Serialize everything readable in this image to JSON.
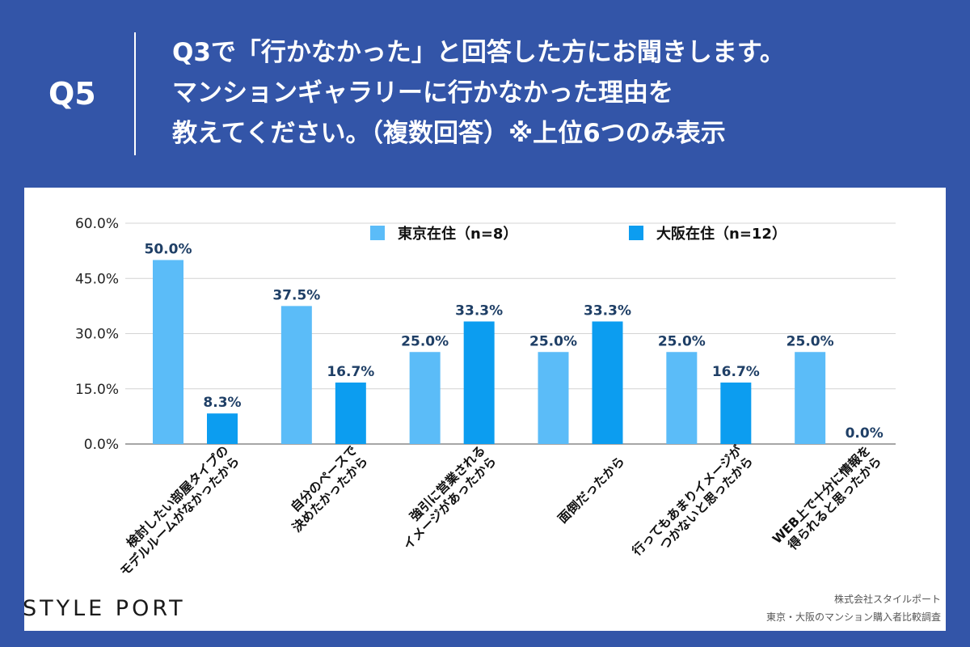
{
  "header": {
    "qnum": "Q5",
    "lines": [
      "Q3で「行かなかった」と回答した方にお聞きします。",
      "マンションギャラリーに行かなかった理由を",
      "教えてください。（複数回答）※上位6つのみ表示"
    ]
  },
  "chart_data": {
    "type": "bar",
    "title": "",
    "ylim": [
      0,
      60
    ],
    "yticks": [
      "0.0%",
      "15.0%",
      "30.0%",
      "45.0%",
      "60.0%"
    ],
    "ytick_values": [
      0,
      15,
      30,
      45,
      60
    ],
    "categories": [
      [
        "検討したい部屋タイプの",
        "モデルルームがなかったから"
      ],
      [
        "自分のペースで",
        "決めたかったから"
      ],
      [
        "強引に営業される",
        "イメージがあったから"
      ],
      [
        "面倒だったから"
      ],
      [
        "行ってもあまりイメージが",
        "つかないと思ったから"
      ],
      [
        "WEB上で十分に情報を",
        "得られると思ったから"
      ]
    ],
    "series": [
      {
        "name": "東京在住（n=8）",
        "color": "#5bbcf8",
        "values": [
          50.0,
          37.5,
          25.0,
          25.0,
          25.0,
          25.0
        ],
        "labels": [
          "50.0%",
          "37.5%",
          "25.0%",
          "25.0%",
          "25.0%",
          "25.0%"
        ]
      },
      {
        "name": "大阪在住（n=12）",
        "color": "#0c9df0",
        "values": [
          8.3,
          16.7,
          33.3,
          33.3,
          16.7,
          0.0
        ],
        "labels": [
          "8.3%",
          "16.7%",
          "33.3%",
          "33.3%",
          "16.7%",
          "0.0%"
        ]
      }
    ]
  },
  "footer": {
    "logo": "STYLE PORT",
    "source_lines": [
      "株式会社スタイルポート",
      "東京・大阪のマンション購入者比較調査"
    ]
  }
}
